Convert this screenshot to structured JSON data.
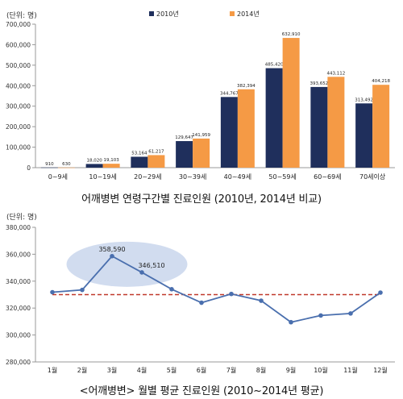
{
  "colors": {
    "series_2010": "#1f2f5c",
    "series_2014": "#f59a45",
    "line": "#4a6fae",
    "average_line": "#c0392b",
    "highlight": "#c9d6ec"
  },
  "chart_data": [
    {
      "type": "bar",
      "unit_label": "(단위: 명)",
      "caption": "어깨병변 연령구간별 진료인원 (2010년, 2014년 비교)",
      "categories": [
        "0~9세",
        "10~19세",
        "20~29세",
        "30~39세",
        "40~49세",
        "50~59세",
        "60~69세",
        "70세이상"
      ],
      "series": [
        {
          "name": "2010년",
          "values": [
            910,
            18020,
            53164,
            129647,
            344767,
            485420,
            393652,
            313492
          ],
          "labels": [
            "910",
            "18,020",
            "53,164",
            "129,647",
            "344,767",
            "485,420",
            "393,652",
            "313,492"
          ]
        },
        {
          "name": "2014년",
          "values": [
            630,
            19103,
            61217,
            141959,
            382394,
            632910,
            443112,
            404218
          ],
          "labels": [
            "630",
            "19,103",
            "61,217",
            "141,959",
            "382,394",
            "632,910",
            "443,112",
            "404,218"
          ]
        }
      ],
      "ylim": [
        0,
        700000
      ],
      "yticks": [
        0,
        100000,
        200000,
        300000,
        400000,
        500000,
        600000,
        700000
      ],
      "ytick_labels": [
        "0",
        "100,000",
        "200,000",
        "300,000",
        "400,000",
        "500,000",
        "600,000",
        "700,000"
      ],
      "legend_position": "top-center",
      "grid": false
    },
    {
      "type": "line",
      "unit_label": "(단위: 명)",
      "caption": "<어깨병변> 월별 평균 진료인원 (2010~2014년 평균)",
      "categories": [
        "1월",
        "2월",
        "3월",
        "4월",
        "5월",
        "6월",
        "7월",
        "8월",
        "9월",
        "10월",
        "11월",
        "12월"
      ],
      "values": [
        331800,
        333500,
        358590,
        346510,
        334000,
        324000,
        330500,
        325500,
        309500,
        314500,
        316000,
        331500
      ],
      "point_labels": [
        "",
        "",
        "358,590",
        "346,510",
        "",
        "",
        "",
        "",
        "",
        "",
        "",
        ""
      ],
      "average": 330000,
      "ylim": [
        280000,
        380000
      ],
      "yticks": [
        280000,
        300000,
        320000,
        340000,
        360000,
        380000
      ],
      "ytick_labels": [
        "280,000",
        "300,000",
        "320,000",
        "340,000",
        "360,000",
        "380,000"
      ],
      "grid": false
    }
  ]
}
